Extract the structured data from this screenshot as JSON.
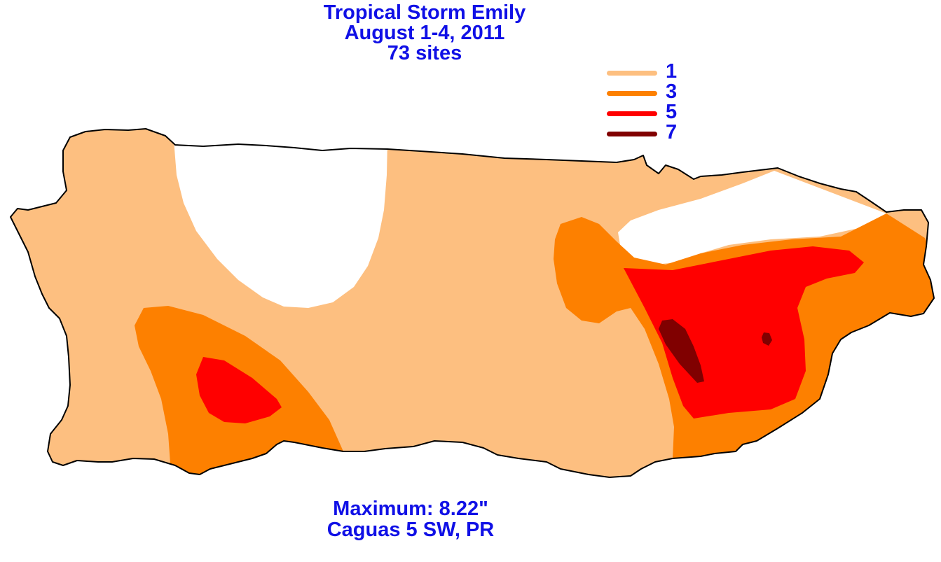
{
  "title": {
    "line1": "Tropical Storm Emily",
    "line2": "August 1-4, 2011",
    "line3": "73 sites"
  },
  "legend": {
    "items": [
      {
        "label": "1",
        "color": "#fdbf80"
      },
      {
        "label": "3",
        "color": "#fd8000"
      },
      {
        "label": "5",
        "color": "#ff0000"
      },
      {
        "label": "7",
        "color": "#800000"
      }
    ]
  },
  "footer": {
    "maximum": "Maximum:  8.22\"",
    "location": "Caguas 5 SW, PR"
  },
  "colors": {
    "text": "#1010e6",
    "outline": "#000000"
  }
}
